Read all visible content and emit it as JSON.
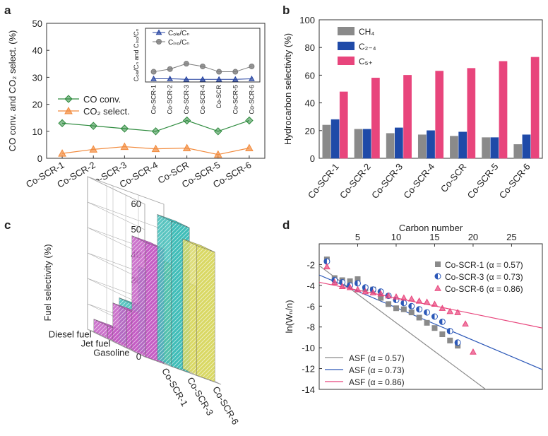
{
  "chart_data": [
    {
      "panel": "a",
      "type": "line",
      "categories": [
        "Co-SCR-1",
        "Co-SCR-2",
        "Co-SCR-3",
        "Co-SCR-4",
        "Co-SCR",
        "Co-SCR-5",
        "Co-SCR-6"
      ],
      "ylabel": "CO conv. and CO₂ select. (%)",
      "ylim": [
        0,
        50
      ],
      "yticks": [
        0,
        10,
        20,
        30,
        40,
        50
      ],
      "series": [
        {
          "name": "CO conv.",
          "color": "#2e8b3e",
          "marker": "diamond",
          "values": [
            13,
            12,
            11,
            10,
            14,
            10,
            14
          ]
        },
        {
          "name": "CO₂ select.",
          "color": "#f28a3c",
          "marker": "triangle",
          "values": [
            1.8,
            3.3,
            4.3,
            3.5,
            3.8,
            1.4,
            3.8
          ]
        }
      ],
      "inset": {
        "type": "line",
        "categories": [
          "Co-SCR-1",
          "Co-SCR-2",
          "Co-SCR-3",
          "Co-SCR-4",
          "Co-SCR",
          "Co-SCR-5",
          "Co-SCR-6"
        ],
        "ylabel": "Cₒₗₑ/Cₙ and Cᵢₛₒ/Cₙ",
        "ylim": [
          0,
          2
        ],
        "series": [
          {
            "name": "Cₒₗₑ/Cₙ",
            "color": "#2442a0",
            "marker": "triangle",
            "values": [
              0.12,
              0.12,
              0.1,
              0.1,
              0.1,
              0.1,
              0.12
            ]
          },
          {
            "name": "Cᵢₛₒ/Cₙ",
            "color": "#7a7a7a",
            "marker": "circle",
            "values": [
              0.38,
              0.48,
              0.68,
              0.58,
              0.38,
              0.38,
              0.58
            ]
          }
        ]
      }
    },
    {
      "panel": "b",
      "type": "bar",
      "categories": [
        "Co-SCR-1",
        "Co-SCR-2",
        "Co-SCR-3",
        "Co-SCR-4",
        "Co-SCR",
        "Co-SCR-5",
        "Co-SCR-6"
      ],
      "ylabel": "Hydrocarbon selectivity (%)",
      "ylim": [
        0,
        100
      ],
      "yticks": [
        0,
        20,
        40,
        60,
        80,
        100
      ],
      "series": [
        {
          "name": "CH₄",
          "color": "#8a8a8a",
          "values": [
            24,
            21,
            18,
            17,
            16,
            15,
            10
          ]
        },
        {
          "name": "C₂₋₄",
          "color": "#1f4aa8",
          "values": [
            28,
            21,
            22,
            20,
            19,
            15,
            17
          ]
        },
        {
          "name": "C₅₊",
          "color": "#e8457c",
          "values": [
            48,
            58,
            60,
            63,
            65,
            70,
            73
          ]
        }
      ]
    },
    {
      "panel": "c",
      "type": "bar",
      "categories": [
        "Co-SCR-1",
        "Co-SCR-3",
        "Co-SCR-6"
      ],
      "fuel_types": [
        "Gasoline",
        "Jet fuel",
        "Diesel fuel"
      ],
      "zlabel": "Fuel selectivity (%)",
      "zlim": [
        0,
        60
      ],
      "zticks": [
        0,
        10,
        20,
        30,
        40,
        50,
        60
      ],
      "series": [
        {
          "name": "Co-SCR-1",
          "color": "#c45cc4",
          "values": [
            45,
            15,
            5
          ]
        },
        {
          "name": "Co-SCR-3",
          "color": "#3fbdb8",
          "values": [
            57,
            33,
            17
          ]
        },
        {
          "name": "Co-SCR-6",
          "color": "#d9d864",
          "values": [
            51,
            34,
            38
          ]
        }
      ]
    },
    {
      "panel": "d",
      "type": "scatter",
      "xlabel": "Carbon number",
      "ylabel": "ln(Wₙ/n)",
      "xlim": [
        0,
        29
      ],
      "xticks": [
        0,
        5,
        10,
        15,
        20,
        25
      ],
      "ylim": [
        -14,
        0
      ],
      "yticks": [
        -2,
        -4,
        -6,
        -8,
        -10,
        -12,
        -14
      ],
      "series": [
        {
          "name": "Co-SCR-1 (α = 0.57)",
          "color": "#8a8a8a",
          "marker": "square",
          "x": [
            1,
            2,
            3,
            4,
            5,
            6,
            7,
            8,
            9,
            10,
            11,
            12,
            13,
            14,
            15,
            16,
            17,
            18
          ],
          "y": [
            -1.5,
            -3.3,
            -3.5,
            -3.6,
            -3.4,
            -4.3,
            -4.4,
            -5.2,
            -5.8,
            -6.2,
            -6.3,
            -6.6,
            -7.1,
            -7.6,
            -8.1,
            -8.7,
            -9.3,
            -9.8
          ]
        },
        {
          "name": "Co-SCR-3 (α = 0.73)",
          "color": "#2c58b8",
          "marker": "half-circle",
          "x": [
            1,
            2,
            3,
            4,
            5,
            6,
            7,
            8,
            9,
            10,
            11,
            12,
            13,
            14,
            15,
            16,
            17,
            18
          ],
          "y": [
            -1.7,
            -3.5,
            -3.7,
            -4.0,
            -3.8,
            -4.2,
            -4.4,
            -4.6,
            -5.0,
            -5.4,
            -5.7,
            -6.0,
            -6.3,
            -6.6,
            -7.0,
            -7.5,
            -8.4,
            -9.5
          ]
        },
        {
          "name": "Co-SCR-6 (α = 0.86)",
          "color": "#e8457c",
          "marker": "triangle",
          "x": [
            1,
            2,
            3,
            4,
            5,
            6,
            7,
            8,
            9,
            10,
            11,
            12,
            13,
            14,
            15,
            16,
            17,
            18,
            19,
            20
          ],
          "y": [
            -2.2,
            -3.7,
            -4.1,
            -4.2,
            -4.4,
            -4.6,
            -4.7,
            -4.8,
            -5.0,
            -5.1,
            -5.2,
            -5.3,
            -5.5,
            -5.6,
            -5.8,
            -6.2,
            -6.5,
            -6.6,
            -7.7,
            -10.4
          ]
        }
      ],
      "fit_lines": [
        {
          "name": "ASF (α = 0.57)",
          "color": "#8a8a8a",
          "x": [
            0,
            22
          ],
          "y": [
            -2.1,
            -14.2
          ]
        },
        {
          "name": "ASF (α = 0.73)",
          "color": "#2c58b8",
          "x": [
            0,
            29
          ],
          "y": [
            -3.0,
            -12.1
          ]
        },
        {
          "name": "ASF (α = 0.86)",
          "color": "#e8457c",
          "x": [
            0,
            29
          ],
          "y": [
            -3.7,
            -8.1
          ]
        }
      ]
    }
  ],
  "labels": {
    "a": "a",
    "b": "b",
    "c": "c",
    "d": "d"
  }
}
